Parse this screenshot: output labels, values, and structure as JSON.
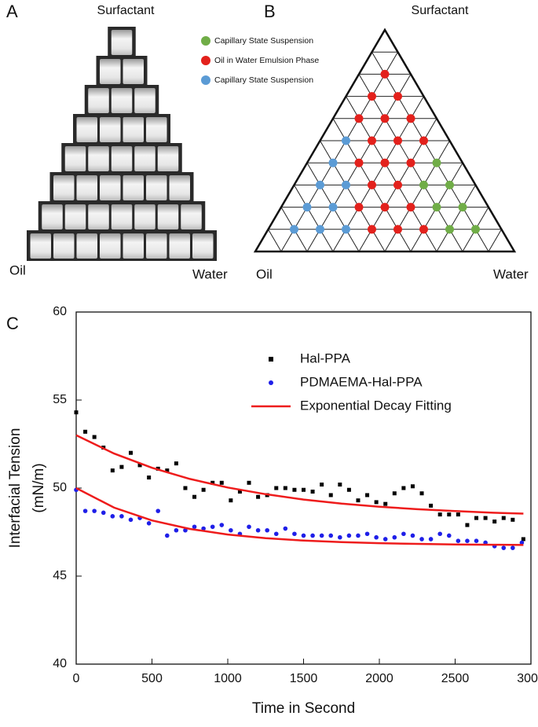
{
  "panel_a": {
    "label": "A",
    "top": "Surfactant",
    "left": "Oil",
    "right": "Water"
  },
  "panel_b": {
    "label": "B",
    "top": "Surfactant",
    "left": "Oil",
    "right": "Water",
    "legend": [
      {
        "name": "Capillary State Suspension",
        "color": "#70ad47"
      },
      {
        "name": "Oil in Water Emulsion Phase",
        "color": "#e3211c"
      },
      {
        "name": "Capillary State Suspension",
        "color": "#5b9bd5"
      }
    ],
    "points": [
      [
        "#e3211c"
      ],
      [
        "#e3211c",
        "#e3211c"
      ],
      [
        "#e3211c",
        "#e3211c",
        "#e3211c"
      ],
      [
        "#5b9bd5",
        "#e3211c",
        "#e3211c",
        "#e3211c"
      ],
      [
        "#5b9bd5",
        "#e3211c",
        "#e3211c",
        "#e3211c",
        "#70ad47"
      ],
      [
        "#5b9bd5",
        "#5b9bd5",
        "#e3211c",
        "#e3211c",
        "#70ad47",
        "#70ad47"
      ],
      [
        "#5b9bd5",
        "#5b9bd5",
        "#e3211c",
        "#e3211c",
        "#e3211c",
        "#70ad47",
        "#70ad47"
      ],
      [
        "#5b9bd5",
        "#5b9bd5",
        "#5b9bd5",
        "#e3211c",
        "#e3211c",
        "#e3211c",
        "#70ad47",
        "#70ad47"
      ]
    ]
  },
  "chart_data": {
    "type": "scatter",
    "panel_label": "C",
    "x_label": "Time in Second",
    "y_label": [
      "Interfacial Tension",
      "(mN/m)"
    ],
    "xlim": [
      0,
      3000
    ],
    "xticks": [
      0,
      500,
      1000,
      1500,
      2000,
      2500,
      3000
    ],
    "ylim": [
      40,
      60
    ],
    "yticks": [
      40,
      45,
      50,
      55,
      60
    ],
    "legend": "upper right",
    "series": [
      {
        "name": "Hal-PPA",
        "color": "#000000",
        "marker": "square",
        "x": [
          0,
          60,
          120,
          180,
          240,
          300,
          360,
          420,
          480,
          540,
          600,
          660,
          720,
          780,
          840,
          900,
          960,
          1020,
          1080,
          1140,
          1200,
          1260,
          1320,
          1380,
          1440,
          1500,
          1560,
          1620,
          1680,
          1740,
          1800,
          1860,
          1920,
          1980,
          2040,
          2100,
          2160,
          2220,
          2280,
          2340,
          2400,
          2460,
          2520,
          2580,
          2640,
          2700,
          2760,
          2820,
          2880,
          2950
        ],
        "values": [
          54.3,
          53.2,
          52.9,
          52.3,
          51.0,
          51.2,
          52.0,
          51.3,
          50.6,
          51.1,
          51.0,
          51.4,
          50.0,
          49.5,
          49.9,
          50.3,
          50.3,
          49.3,
          49.8,
          50.3,
          49.5,
          49.6,
          50.0,
          50.0,
          49.9,
          49.9,
          49.8,
          50.2,
          49.6,
          50.2,
          49.9,
          49.3,
          49.6,
          49.2,
          49.1,
          49.7,
          50.0,
          50.1,
          49.7,
          49.0,
          48.5,
          48.5,
          48.5,
          47.9,
          48.3,
          48.3,
          48.1,
          48.3,
          48.2,
          47.1
        ]
      },
      {
        "name": "PDMAEMA-Hal-PPA",
        "color": "#1f1fe8",
        "marker": "circle",
        "x": [
          0,
          60,
          120,
          180,
          240,
          300,
          360,
          420,
          480,
          540,
          600,
          660,
          720,
          780,
          840,
          900,
          960,
          1020,
          1080,
          1140,
          1200,
          1260,
          1320,
          1380,
          1440,
          1500,
          1560,
          1620,
          1680,
          1740,
          1800,
          1860,
          1920,
          1980,
          2040,
          2100,
          2160,
          2220,
          2280,
          2340,
          2400,
          2460,
          2520,
          2580,
          2640,
          2700,
          2760,
          2820,
          2880,
          2940
        ],
        "values": [
          49.9,
          48.7,
          48.7,
          48.6,
          48.4,
          48.4,
          48.2,
          48.3,
          48.0,
          48.7,
          47.3,
          47.6,
          47.6,
          47.8,
          47.7,
          47.8,
          47.9,
          47.6,
          47.4,
          47.8,
          47.6,
          47.6,
          47.4,
          47.7,
          47.4,
          47.3,
          47.3,
          47.3,
          47.3,
          47.2,
          47.3,
          47.3,
          47.4,
          47.2,
          47.1,
          47.2,
          47.4,
          47.3,
          47.1,
          47.1,
          47.4,
          47.3,
          47.0,
          47.0,
          47.0,
          46.9,
          46.7,
          46.6,
          46.6,
          46.9
        ]
      },
      {
        "name": "Exponential Decay Fitting",
        "color": "#ee1c1c",
        "marker": "line",
        "x": [
          0,
          250,
          500,
          750,
          1000,
          1250,
          1500,
          1750,
          2000,
          2250,
          2500,
          2750,
          2950,
          null,
          0,
          250,
          500,
          750,
          1000,
          1250,
          1500,
          1750,
          2000,
          2250,
          2500,
          2750,
          2950
        ],
        "values": [
          53.0,
          51.96,
          51.15,
          50.52,
          50.03,
          49.65,
          49.35,
          49.12,
          48.94,
          48.8,
          48.69,
          48.6,
          48.55,
          null,
          50.0,
          48.89,
          48.16,
          47.68,
          47.36,
          47.15,
          47.02,
          46.93,
          46.87,
          46.83,
          46.8,
          46.78,
          46.77
        ]
      }
    ]
  }
}
